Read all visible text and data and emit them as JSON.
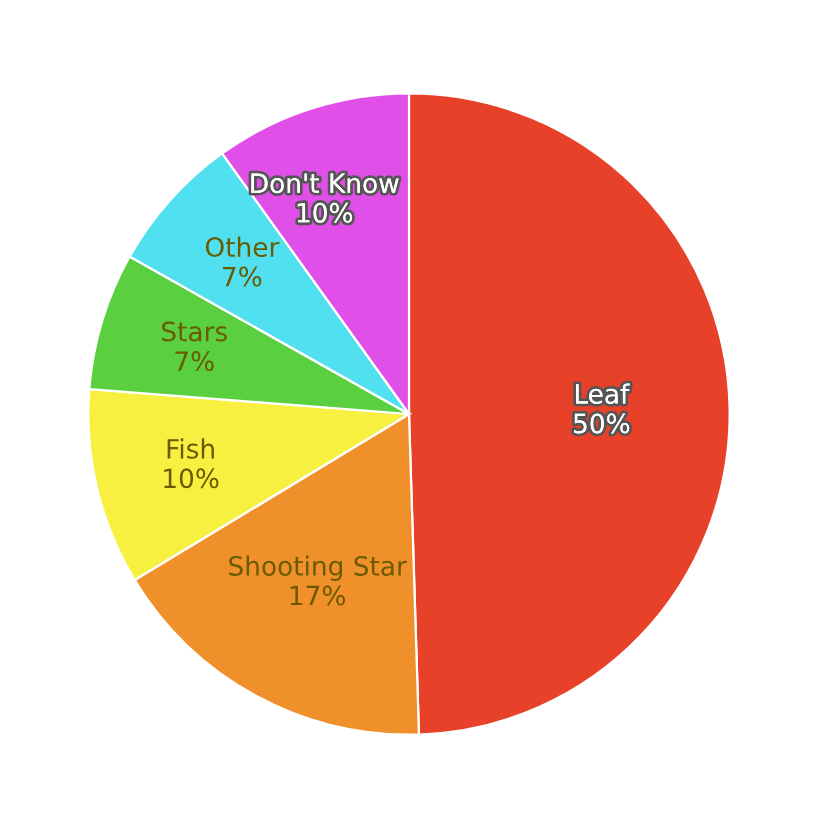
{
  "chart_data": {
    "type": "pie",
    "categories": [
      "Leaf",
      "Shooting Star",
      "Fish",
      "Stars",
      "Other",
      "Don't Know"
    ],
    "values": [
      50,
      17,
      10,
      7,
      7,
      10
    ],
    "value_labels": [
      "50%",
      "17%",
      "10%",
      "7%",
      "7%",
      "10%"
    ],
    "colors": [
      "#e8412a",
      "#f0902a",
      "#f8f040",
      "#5ad040",
      "#50e0f0",
      "#e050e8"
    ]
  }
}
